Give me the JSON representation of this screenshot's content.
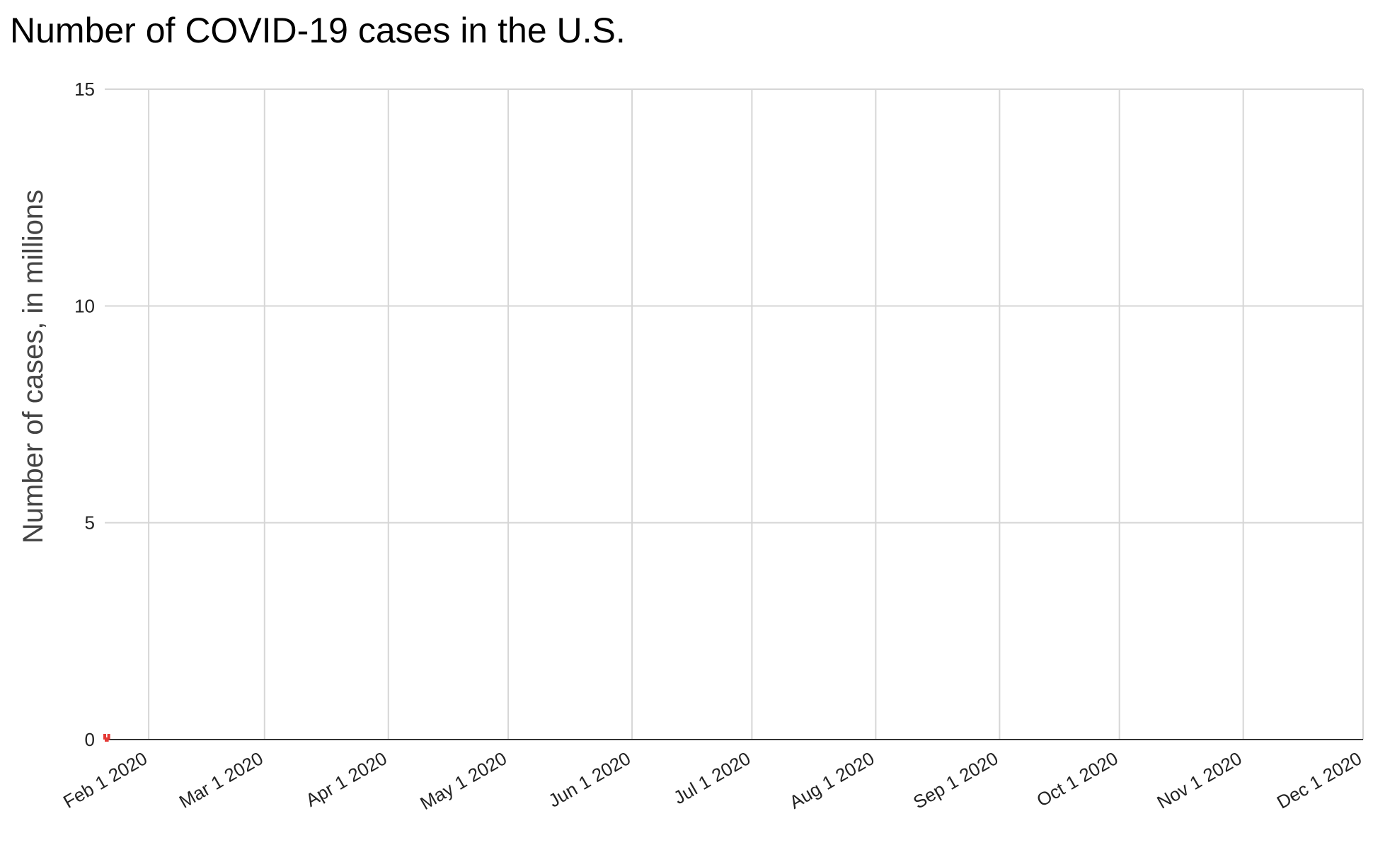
{
  "chart_data": {
    "type": "line",
    "title": "Number of COVID-19 cases in the U.S.",
    "xlabel": "",
    "ylabel": "Number of cases, in millions",
    "ylim": [
      0,
      15
    ],
    "yticks": [
      0,
      5,
      10,
      15
    ],
    "xlim": [
      "2020-01-21",
      "2020-12-01"
    ],
    "x_tick_dates": [
      "2020-02-01",
      "2020-03-01",
      "2020-04-01",
      "2020-05-01",
      "2020-06-01",
      "2020-07-01",
      "2020-08-01",
      "2020-09-01",
      "2020-10-01",
      "2020-11-01",
      "2020-12-01"
    ],
    "x_tick_labels": [
      "Feb 1 2020",
      "Mar 1 2020",
      "Apr 1 2020",
      "May 1 2020",
      "Jun 1 2020",
      "Jul 1 2020",
      "Aug 1 2020",
      "Sep 1 2020",
      "Oct 1 2020",
      "Nov 1 2020",
      "Dec 1 2020"
    ],
    "grid": true,
    "legend": "none",
    "series": [
      {
        "color": "#e53935",
        "x": [
          "2020-01-21",
          "2020-01-22"
        ],
        "values": [
          0.0,
          0.0
        ]
      }
    ]
  }
}
